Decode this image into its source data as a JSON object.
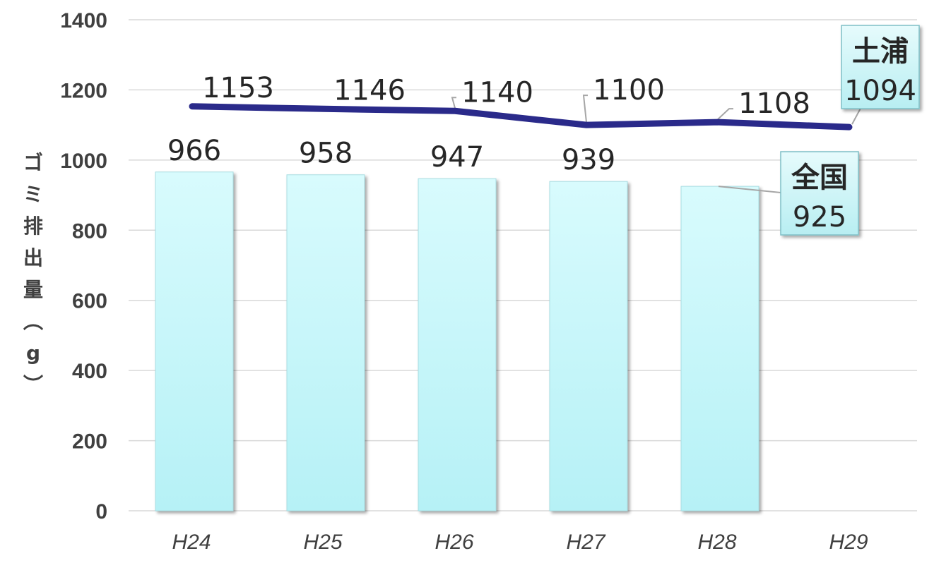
{
  "chart_data": {
    "type": "bar",
    "categories": [
      "H24",
      "H25",
      "H26",
      "H27",
      "H28",
      "H29"
    ],
    "ylabel": "ゴミ排出量（g）",
    "ylim": [
      0,
      1400
    ],
    "yticks": [
      0,
      200,
      400,
      600,
      800,
      1000,
      1200,
      1400
    ],
    "grid": true,
    "series": [
      {
        "name": "全国",
        "type": "bar",
        "values": [
          966,
          958,
          947,
          939,
          925,
          null
        ],
        "color": "#c8f7fb"
      },
      {
        "name": "土浦",
        "type": "line",
        "values": [
          1153,
          1146,
          1140,
          1100,
          1108,
          1094
        ],
        "color": "#2a2a8a"
      }
    ]
  }
}
